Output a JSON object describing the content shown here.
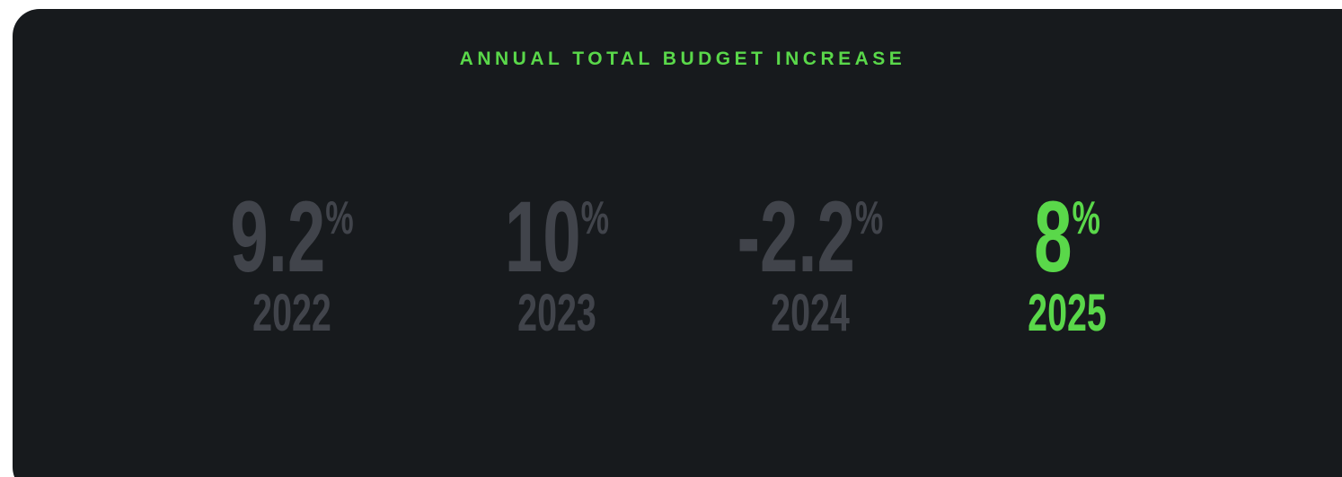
{
  "title": "ANNUAL TOTAL BUDGET INCREASE",
  "title_color": "#5ad84a",
  "stats": [
    {
      "value": 9.2,
      "unit": "%",
      "year": "2022",
      "color": "#41444b"
    },
    {
      "value": 10,
      "unit": "%",
      "year": "2023",
      "color": "#41444b"
    },
    {
      "value": -2.2,
      "unit": "%",
      "year": "2024",
      "color": "#41444b"
    },
    {
      "value": 8,
      "unit": "%",
      "year": "2025",
      "color": "#5ad84a"
    }
  ]
}
